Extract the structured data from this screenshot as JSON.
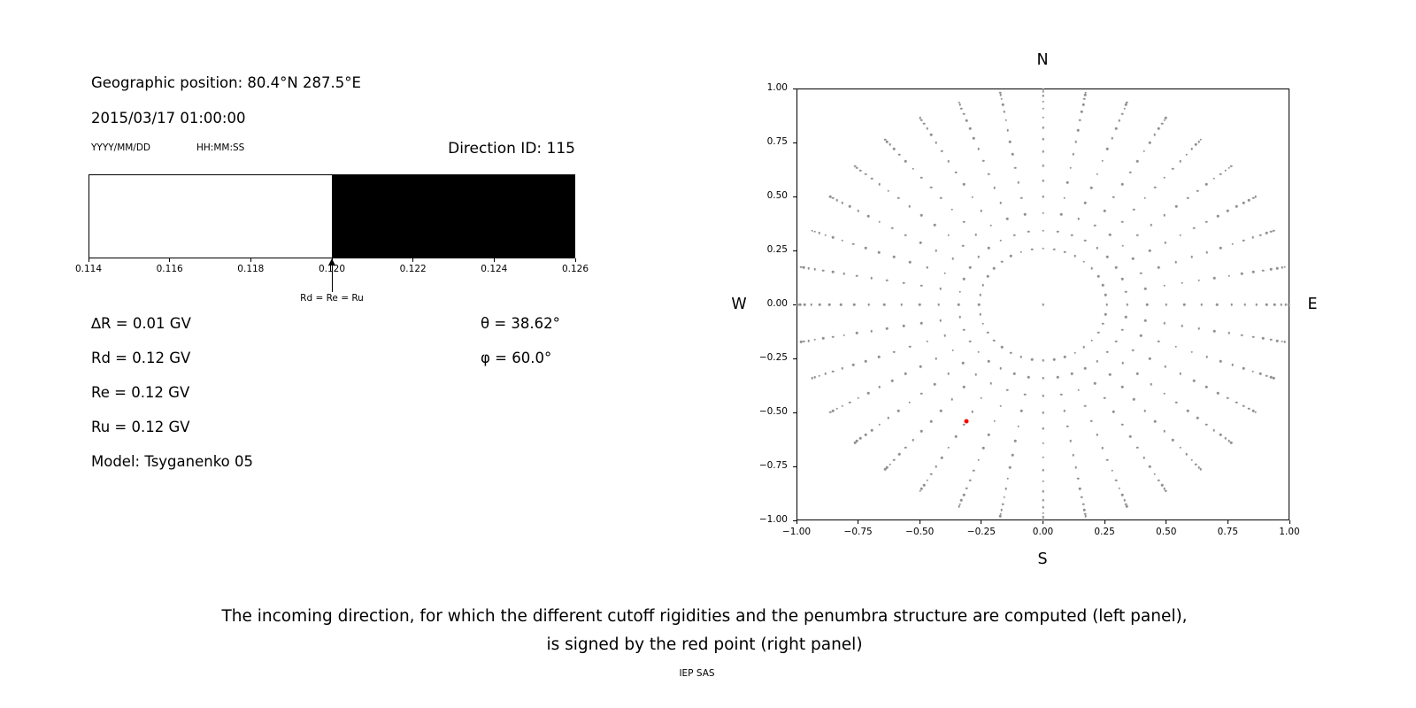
{
  "left_panel": {
    "geo_position": "Geographic position: 80.4°N 287.5°E",
    "datetime": "2015/03/17 01:00:00",
    "date_format_label": "YYYY/MM/DD",
    "time_format_label": "HH:MM:SS",
    "direction_id_label": "Direction ID: 115",
    "parameters": [
      "∆R = 0.01 GV",
      "Rd = 0.12 GV",
      "Re = 0.12 GV",
      "Ru = 0.12 GV",
      "Model: Tsyganenko 05"
    ],
    "angles": [
      "θ = 38.62°",
      "φ = 60.0°"
    ]
  },
  "chart_data": [
    {
      "id": "penumbra-structure",
      "type": "bar",
      "title": "",
      "xlim": [
        0.114,
        0.126
      ],
      "xunit": "GV",
      "xtick_values": [
        0.114,
        0.116,
        0.118,
        0.12,
        0.122,
        0.124,
        0.126
      ],
      "xtick_labels": [
        "0.114",
        "0.116",
        "0.118",
        "0.120",
        "0.122",
        "0.124",
        "0.126"
      ],
      "segments": [
        {
          "from": 0.114,
          "to": 0.12,
          "color": "#ffffff"
        },
        {
          "from": 0.12,
          "to": 0.126,
          "color": "#000000"
        }
      ],
      "annotation": {
        "value": 0.12,
        "label": "Rd = Re = Ru"
      }
    },
    {
      "id": "incoming-direction-map",
      "type": "scatter",
      "title": "",
      "compass": {
        "top": "N",
        "bottom": "S",
        "left": "W",
        "right": "E"
      },
      "xlim": [
        -1.0,
        1.0
      ],
      "ylim": [
        -1.0,
        1.0
      ],
      "grid": false,
      "xtick_values": [
        -1.0,
        -0.75,
        -0.5,
        -0.25,
        0.0,
        0.25,
        0.5,
        0.75,
        1.0
      ],
      "xtick_labels": [
        "−1.00",
        "−0.75",
        "−0.50",
        "−0.25",
        "0.00",
        "0.25",
        "0.50",
        "0.75",
        "1.00"
      ],
      "ytick_values": [
        1.0,
        0.75,
        0.5,
        0.25,
        0.0,
        -0.25,
        -0.5,
        -0.75,
        -1.0
      ],
      "ytick_labels": [
        "1.00",
        "0.75",
        "0.50",
        "0.25",
        "0.00",
        "−0.25",
        "−0.50",
        "−0.75",
        "−1.00"
      ],
      "series": [
        {
          "name": "direction-grid",
          "color": "#8f8f8f",
          "marker_px": 2.6,
          "generator": {
            "kind": "radial-grid",
            "azimuth_start_deg": 0,
            "azimuth_step_deg": 10,
            "azimuth_count": 36,
            "zenith_start_deg": 15,
            "zenith_step_deg": 5,
            "zenith_end_deg": 85,
            "radius": "sin(zenith)"
          },
          "extra_points": [
            [
              0.0,
              0.0
            ]
          ]
        },
        {
          "name": "selected-direction",
          "color": "#ff0000",
          "marker_px": 5,
          "points": [
            [
              -0.312,
              -0.54
            ]
          ]
        }
      ]
    }
  ],
  "caption": {
    "line1": "The incoming direction, for which the different cutoff rigidities and the penumbra structure are computed (left panel),",
    "line2": "is signed by the red point (right panel)",
    "credit": "IEP SAS"
  }
}
